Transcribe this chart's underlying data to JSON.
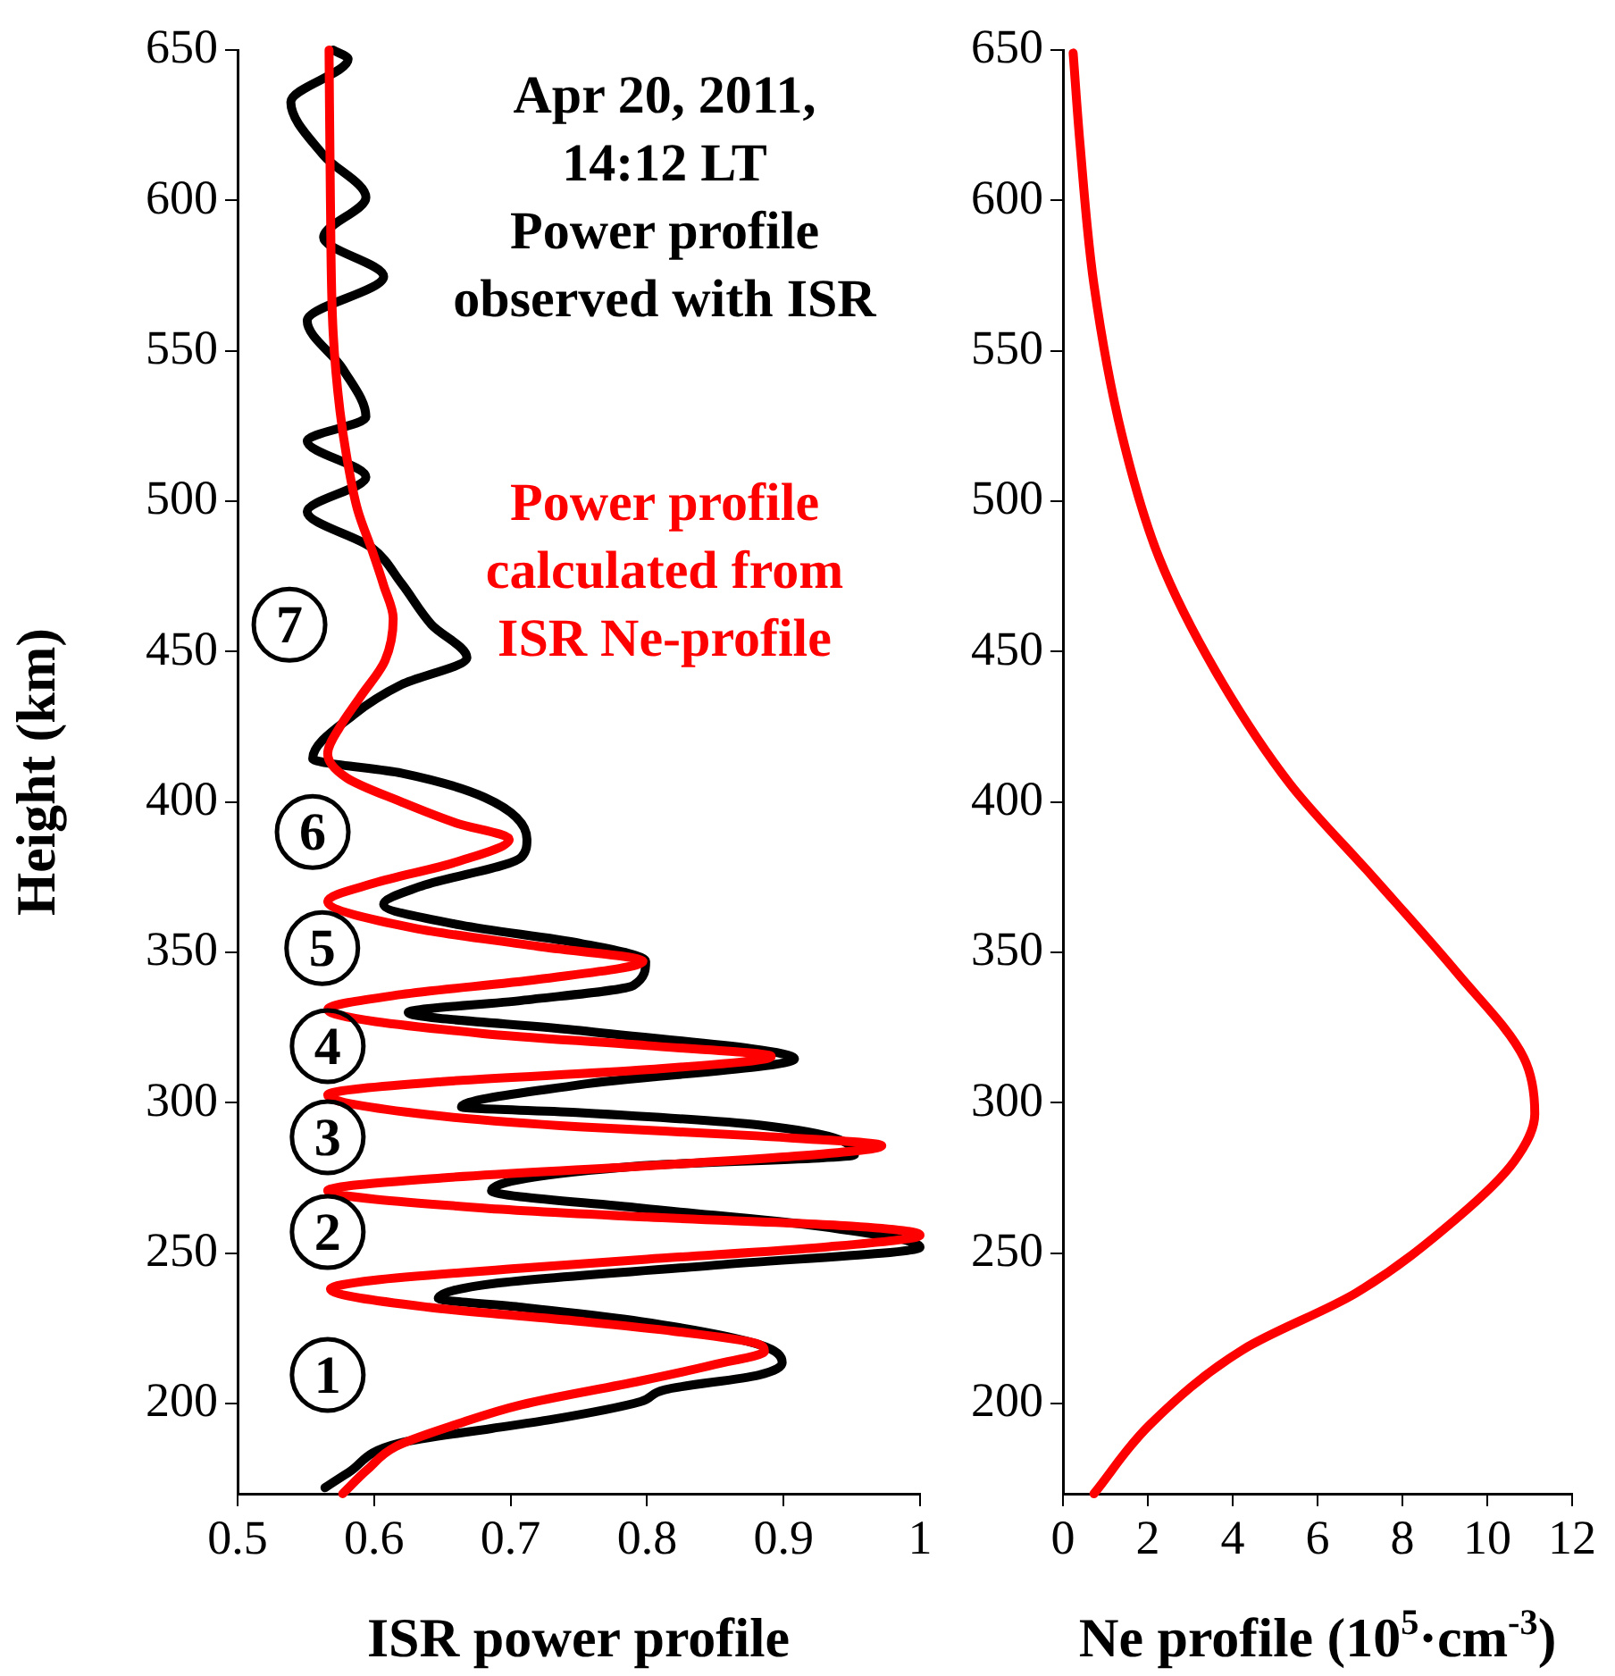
{
  "chart_data": [
    {
      "type": "line",
      "xlabel": "ISR power profile",
      "ylabel": "Height (km)",
      "xlim": [
        0.5,
        1
      ],
      "xticks": [
        0.5,
        0.6,
        0.7,
        0.8,
        0.9,
        1
      ],
      "ylim": [
        170,
        650
      ],
      "yticks": [
        200,
        250,
        300,
        350,
        400,
        450,
        500,
        550,
        600,
        650
      ],
      "legend": false,
      "grid": false,
      "marker": "none",
      "line_style": "solid",
      "annotations": [
        "Apr 20, 2011, 14:12 LT",
        {
          "text": "1",
          "x": 0.566,
          "y": 209.5
        },
        {
          "text": "2",
          "x": 0.566,
          "y": 257
        },
        {
          "text": "3",
          "x": 0.566,
          "y": 288.5
        },
        {
          "text": "4",
          "x": 0.566,
          "y": 318.8
        },
        {
          "text": "5",
          "x": 0.562,
          "y": 351.4
        },
        {
          "text": "6",
          "x": 0.555,
          "y": 390
        },
        {
          "text": "7",
          "x": 0.538,
          "y": 458.9
        }
      ],
      "series": [
        {
          "name": "Power profile observed with ISR",
          "color": "#000000",
          "x": [
            0.564,
            0.581,
            0.62,
            0.686,
            0.729,
            0.795,
            0.813,
            0.882,
            0.899,
            0.882,
            0.795,
            0.708,
            0.647,
            0.69,
            0.85,
            1.0,
            0.925,
            0.795,
            0.686,
            0.795,
            0.952,
            0.882,
            0.751,
            0.664,
            0.751,
            0.908,
            0.751,
            0.625,
            0.708,
            0.79,
            0.799,
            0.751,
            0.664,
            0.607,
            0.633,
            0.708,
            0.712,
            0.681,
            0.62,
            0.555,
            0.585,
            0.62,
            0.668,
            0.642,
            0.62,
            0.598,
            0.551,
            0.594,
            0.551,
            0.594,
            0.577,
            0.551,
            0.607,
            0.563,
            0.594,
            0.563,
            0.539,
            0.581,
            0.57
          ],
          "values": [
            172,
            177,
            187,
            191.7,
            194.6,
            200.6,
            204.6,
            209.5,
            213.6,
            219.6,
            227.3,
            232,
            235,
            240,
            246,
            252,
            259,
            265,
            270.8,
            279,
            282.7,
            292.6,
            296.7,
            298.6,
            306,
            314.6,
            324,
            330,
            334,
            339,
            347,
            353,
            359,
            366,
            371.8,
            381.7,
            387.6,
            401.5,
            409.6,
            414.4,
            429,
            439,
            448,
            459,
            472.7,
            484.6,
            496.5,
            508,
            520,
            528,
            544,
            560,
            574.7,
            587.7,
            601,
            615,
            632.7,
            647,
            650
          ]
        },
        {
          "name": "Power profile calculated from ISR Ne-profile",
          "color": "#ff0000",
          "x": [
            0.577,
            0.595,
            0.616,
            0.66,
            0.708,
            0.795,
            0.85,
            0.886,
            0.88,
            0.82,
            0.751,
            0.64,
            0.568,
            0.6,
            0.708,
            0.8,
            0.93,
            1.0,
            0.95,
            0.8,
            0.68,
            0.566,
            0.65,
            0.8,
            0.93,
            0.972,
            0.88,
            0.75,
            0.64,
            0.566,
            0.65,
            0.8,
            0.891,
            0.8,
            0.68,
            0.566,
            0.62,
            0.72,
            0.797,
            0.72,
            0.63,
            0.566,
            0.6,
            0.66,
            0.699,
            0.66,
            0.62,
            0.58,
            0.566,
            0.575,
            0.59,
            0.608,
            0.614,
            0.607,
            0.599,
            0.588,
            0.581,
            0.575,
            0.57,
            0.568,
            0.567
          ],
          "values": [
            170,
            178,
            185.7,
            193,
            199.6,
            207.5,
            213,
            217.4,
            220,
            224,
            227.3,
            232,
            238,
            241,
            245,
            248,
            252,
            256,
            259,
            262,
            265,
            270.8,
            275,
            279,
            283,
            285.7,
            289,
            292,
            296,
            302.6,
            307,
            311,
            315.4,
            319,
            323,
            331,
            336,
            341,
            347,
            352,
            358,
            367,
            373,
            380,
            387.6,
            393,
            400,
            408,
            416,
            425,
            435,
            447,
            461,
            472,
            483,
            497,
            512,
            530,
            556,
            600,
            650
          ]
        }
      ]
    },
    {
      "type": "line",
      "xlabel": "Ne profile (10$^{5}$·cm$^{-3}$)",
      "xlim": [
        0,
        12
      ],
      "xticks": [
        0,
        2,
        4,
        6,
        8,
        10,
        12
      ],
      "ylim": [
        170,
        650
      ],
      "yticks": [
        200,
        250,
        300,
        350,
        400,
        450,
        500,
        550,
        600,
        650
      ],
      "legend": false,
      "grid": false,
      "marker": "none",
      "line_style": "solid",
      "series": [
        {
          "color": "#ff0000",
          "x": [
            0.73,
            2.05,
            4.25,
            6.9,
            9.3,
            10.64,
            11.12,
            10.86,
            9.3,
            7.33,
            5.35,
            3.59,
            2.27,
            1.39,
            0.73,
            0.4,
            0.24
          ],
          "values": [
            170,
            193,
            218,
            236.7,
            261.8,
            280.6,
            296.3,
            315,
            343,
            374.7,
            406,
            443.6,
            481,
            522,
            572,
            619,
            649
          ]
        }
      ]
    }
  ]
}
